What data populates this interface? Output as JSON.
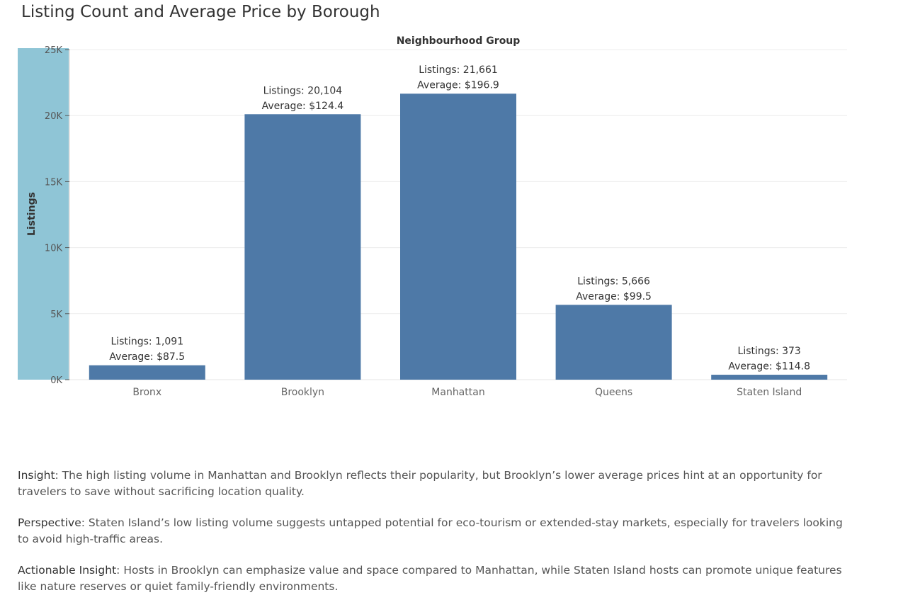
{
  "title": "Listing Count and Average Price by Borough",
  "colors": {
    "bar": "#4e79a7",
    "axis_band": "#8fc5d6",
    "gridline": "#ececec"
  },
  "chart_data": {
    "type": "bar",
    "column_header": "Neighbourhood Group",
    "ylabel": "Listings",
    "xlabel": "",
    "ylim": [
      0,
      25000
    ],
    "yticks": [
      {
        "value": 0,
        "label": "0K"
      },
      {
        "value": 5000,
        "label": "5K"
      },
      {
        "value": 10000,
        "label": "10K"
      },
      {
        "value": 15000,
        "label": "15K"
      },
      {
        "value": 20000,
        "label": "20K"
      },
      {
        "value": 25000,
        "label": "25K"
      }
    ],
    "grid": true,
    "categories": [
      "Bronx",
      "Brooklyn",
      "Manhattan",
      "Queens",
      "Staten Island"
    ],
    "values": [
      1091,
      20104,
      21661,
      5666,
      373
    ],
    "bar_labels": [
      [
        "Listings: 1,091",
        "Average: $87.5"
      ],
      [
        "Listings: 20,104",
        "Average: $124.4"
      ],
      [
        "Listings: 21,661",
        "Average: $196.9"
      ],
      [
        "Listings: 5,666",
        "Average: $99.5"
      ],
      [
        "Listings: 373",
        "Average: $114.8"
      ]
    ],
    "average_price": [
      87.5,
      124.4,
      196.9,
      99.5,
      114.8
    ]
  },
  "insights": [
    {
      "label": "Insight",
      "text": ": The high listing volume in Manhattan and Brooklyn reflects their popularity, but Brooklyn’s lower average prices hint at an opportunity for travelers to save without sacrificing location quality."
    },
    {
      "label": "Perspective",
      "text": ": Staten Island’s low listing volume suggests untapped potential for eco-tourism or extended-stay markets, especially for travelers looking to avoid high-traffic areas."
    },
    {
      "label": "Actionable Insight",
      "text": ": Hosts in Brooklyn can emphasize value and space compared to Manhattan, while Staten Island hosts can promote unique features like nature reserves or quiet family-friendly environments."
    }
  ]
}
